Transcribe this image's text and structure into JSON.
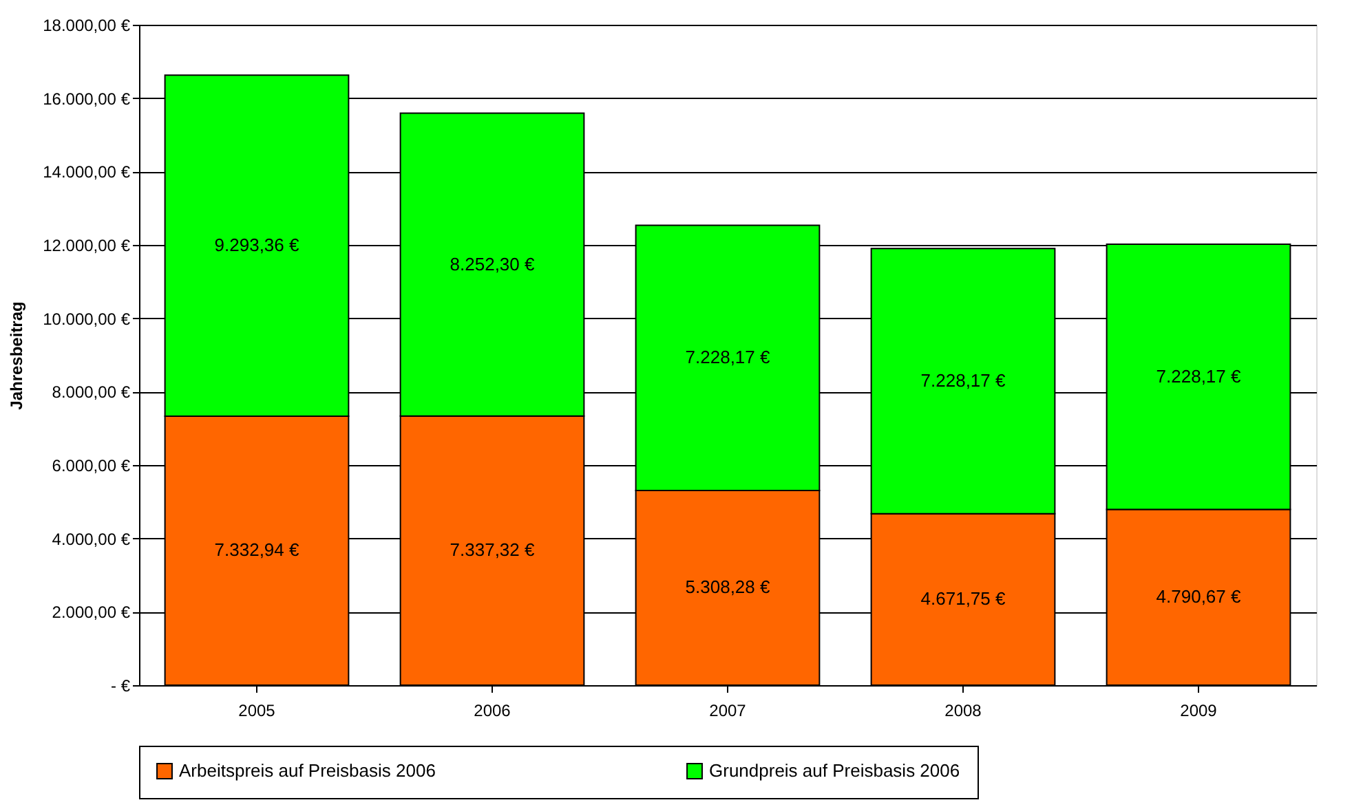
{
  "chart_data": {
    "type": "bar",
    "stacked": true,
    "ylabel": "Jahresbeitrag",
    "categories": [
      "2005",
      "2006",
      "2007",
      "2008",
      "2009"
    ],
    "series": [
      {
        "name": "Arbeitspreis auf Preisbasis 2006",
        "color": "#ff6600",
        "values": [
          7332.94,
          7337.32,
          5308.28,
          4671.75,
          4790.67
        ],
        "value_labels": [
          "7.332,94 €",
          "7.337,32 €",
          "5.308,28 €",
          "4.671,75 €",
          "4.790,67 €"
        ]
      },
      {
        "name": "Grundpreis auf Preisbasis 2006",
        "color": "#00ff00",
        "values": [
          9293.36,
          8252.3,
          7228.17,
          7228.17,
          7228.17
        ],
        "value_labels": [
          "9.293,36 €",
          "8.252,30 €",
          "7.228,17 €",
          "7.228,17 €",
          "7.228,17 €"
        ]
      }
    ],
    "ylim": [
      0,
      18000
    ],
    "yticks": [
      {
        "value": 0,
        "label": "-   €"
      },
      {
        "value": 2000,
        "label": "2.000,00 €"
      },
      {
        "value": 4000,
        "label": "4.000,00 €"
      },
      {
        "value": 6000,
        "label": "6.000,00 €"
      },
      {
        "value": 8000,
        "label": "8.000,00 €"
      },
      {
        "value": 10000,
        "label": "10.000,00 €"
      },
      {
        "value": 12000,
        "label": "12.000,00 €"
      },
      {
        "value": 14000,
        "label": "14.000,00 €"
      },
      {
        "value": 16000,
        "label": "16.000,00 €"
      },
      {
        "value": 18000,
        "label": "18.000,00 €"
      }
    ],
    "grid": "y",
    "legend": "bottom"
  }
}
